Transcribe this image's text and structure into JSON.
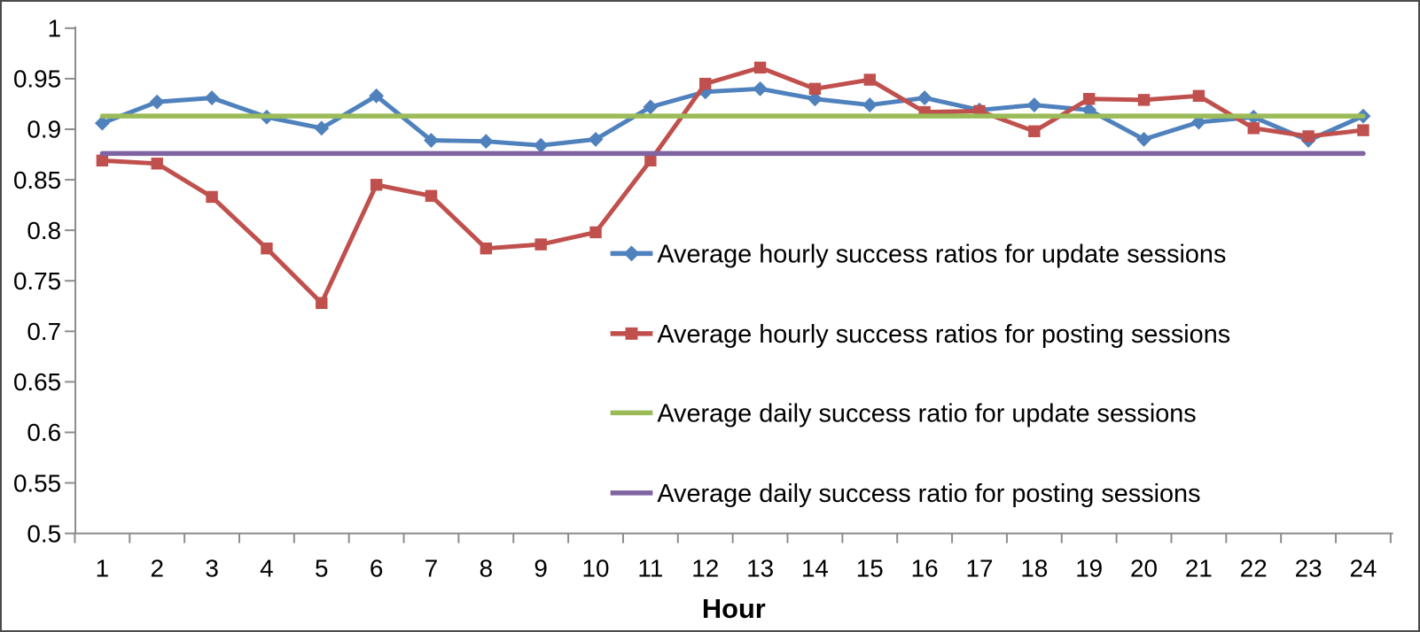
{
  "chart_data": {
    "type": "line",
    "title": "",
    "xlabel": "Hour",
    "ylabel": "",
    "x_categories": [
      "1",
      "2",
      "3",
      "4",
      "5",
      "6",
      "7",
      "8",
      "9",
      "10",
      "11",
      "12",
      "13",
      "14",
      "15",
      "16",
      "17",
      "18",
      "19",
      "20",
      "21",
      "22",
      "23",
      "24"
    ],
    "ylim": [
      0.5,
      1.0
    ],
    "ytick_step": 0.05,
    "ytick_labels": [
      "1",
      "0.95",
      "0.9",
      "0.85",
      "0.8",
      "0.75",
      "0.7",
      "0.65",
      "0.6",
      "0.55",
      "0.5"
    ],
    "grid": false,
    "legend_position": "inside-right-middle",
    "axis_color": "#8c8c8c",
    "text_color": "#000000",
    "series": [
      {
        "name": "Average hourly success ratios for update sessions",
        "color": "#4F81BD",
        "marker": "diamond",
        "values": [
          0.906,
          0.927,
          0.931,
          0.912,
          0.901,
          0.933,
          0.889,
          0.888,
          0.884,
          0.89,
          0.922,
          0.937,
          0.94,
          0.93,
          0.924,
          0.931,
          0.919,
          0.924,
          0.919,
          0.89,
          0.907,
          0.912,
          0.889,
          0.913
        ]
      },
      {
        "name": "Average hourly success ratios for posting sessions",
        "color": "#C0504D",
        "marker": "square",
        "values": [
          0.869,
          0.866,
          0.833,
          0.782,
          0.728,
          0.845,
          0.834,
          0.782,
          0.786,
          0.798,
          0.869,
          0.945,
          0.961,
          0.94,
          0.949,
          0.917,
          0.918,
          0.898,
          0.93,
          0.929,
          0.933,
          0.901,
          0.893,
          0.899
        ]
      },
      {
        "name": "Average daily success ratio for update sessions",
        "color": "#9BBB59",
        "marker": "none",
        "constant_value": 0.913
      },
      {
        "name": "Average daily success ratio for posting sessions",
        "color": "#8064A2",
        "marker": "none",
        "constant_value": 0.876
      }
    ]
  }
}
